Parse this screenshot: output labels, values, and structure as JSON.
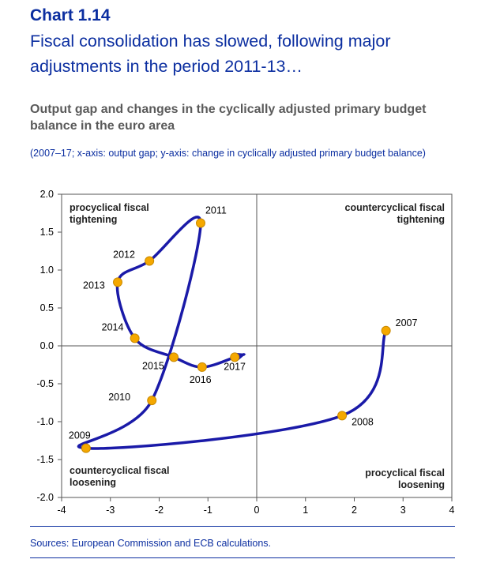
{
  "header": {
    "chart_label": "Chart 1.14",
    "headline": "Fiscal consolidation has slowed, following major adjustments in the period 2011-13…",
    "subtitle": "Output gap and changes in the cyclically adjusted primary budget balance in the euro area",
    "units": "(2007–17; x-axis: output gap; y-axis: change in cyclically adjusted primary budget balance)"
  },
  "footer": {
    "sources": "Sources: European Commission and ECB calculations."
  },
  "colors": {
    "line": "#1a1aa8",
    "marker_fill": "#f5a800",
    "marker_stroke": "#c98a00",
    "accent": "#0b2ea0",
    "axis": "#555555"
  },
  "chart_data": {
    "type": "scatter",
    "title": "Output gap and changes in the cyclically adjusted primary budget balance in the euro area",
    "xlabel": "output gap",
    "ylabel": "change in cyclically adjusted primary budget balance",
    "xlim": [
      -4,
      4
    ],
    "ylim": [
      -2,
      2
    ],
    "xticks": [
      -4,
      -3,
      -2,
      -1,
      0,
      1,
      2,
      3,
      4
    ],
    "yticks": [
      2.0,
      1.5,
      1.0,
      0.5,
      0.0,
      -0.5,
      -1.0,
      -1.5,
      -2.0
    ],
    "ytick_labels": [
      "2.0",
      "1.5",
      "1.0",
      "0.5",
      "0.0",
      "-0.5",
      "-1.0",
      "-1.5",
      "-2.0"
    ],
    "series": [
      {
        "name": "euro area",
        "points": [
          {
            "label": "2007",
            "x": 2.65,
            "y": 0.2
          },
          {
            "label": "2008",
            "x": 1.75,
            "y": -0.92
          },
          {
            "label": "2009",
            "x": -3.5,
            "y": -1.35
          },
          {
            "label": "2010",
            "x": -2.15,
            "y": -0.72
          },
          {
            "label": "2011",
            "x": -1.15,
            "y": 1.62
          },
          {
            "label": "2012",
            "x": -2.2,
            "y": 1.12
          },
          {
            "label": "2013",
            "x": -2.85,
            "y": 0.84
          },
          {
            "label": "2014",
            "x": -2.5,
            "y": 0.1
          },
          {
            "label": "2015",
            "x": -1.7,
            "y": -0.15
          },
          {
            "label": "2016",
            "x": -1.12,
            "y": -0.28
          },
          {
            "label": "2017",
            "x": -0.45,
            "y": -0.15
          }
        ]
      }
    ],
    "quadrant_labels": {
      "top_left": "procyclical fiscal tightening",
      "top_right": "countercyclical fiscal tightening",
      "bottom_left": "countercyclical fiscal loosening",
      "bottom_right": "procyclical fiscal loosening"
    }
  }
}
